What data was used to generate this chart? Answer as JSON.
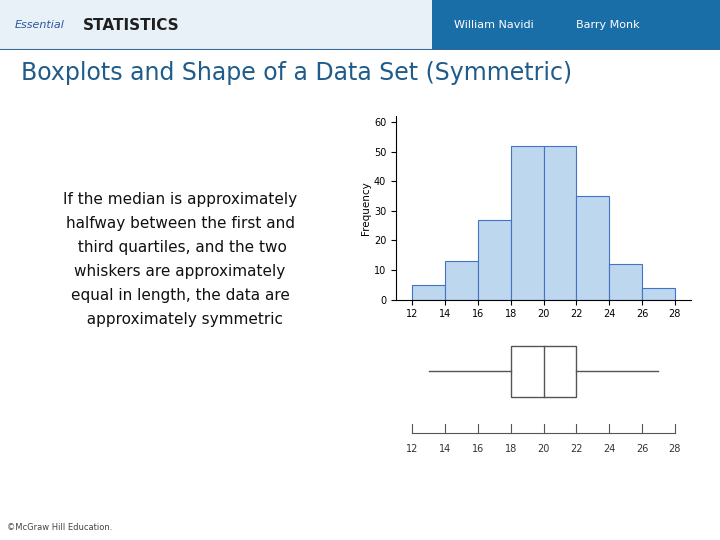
{
  "title": "Boxplots and Shape of a Data Set (Symmetric)",
  "title_color": "#1F5C8B",
  "header_bg_left": "#DDEEFF",
  "header_bg_right": "#1A6EA8",
  "header_text_essential": "Essential",
  "header_text_statistics": "STATISTICS",
  "header_authors": "William Navidi     Barry Monk",
  "slide_bg": "#FFFFFF",
  "text_box_text": "If the median is approximately\nhalfway between the first and\n third quartiles, and the two\nwhiskers are approximately\nequal in length, the data are\n  approximately symmetric",
  "text_box_bg": "#D6E9F8",
  "text_box_border": "#8EB4D8",
  "hist_bins": [
    12,
    14,
    16,
    18,
    20,
    22,
    24,
    26,
    28
  ],
  "hist_freqs": [
    5,
    13,
    27,
    52,
    52,
    35,
    12,
    4
  ],
  "hist_bar_color": "#BDD7EE",
  "hist_bar_edge": "#4472C4",
  "hist_ylabel": "Frequency",
  "hist_yticks": [
    0,
    10,
    20,
    30,
    40,
    50,
    60
  ],
  "hist_xticks": [
    12,
    14,
    16,
    18,
    20,
    22,
    24,
    26,
    28
  ],
  "boxplot_q1": 18,
  "boxplot_median": 20,
  "boxplot_q3": 22,
  "boxplot_whisker_low": 13,
  "boxplot_whisker_high": 27,
  "boxplot_xticks": [
    12,
    14,
    16,
    18,
    20,
    22,
    24,
    26,
    28
  ],
  "footer_text": "©McGraw Hill Education.",
  "separator_color": "#1F5C8B",
  "separator_color2": "#A8C8E0"
}
